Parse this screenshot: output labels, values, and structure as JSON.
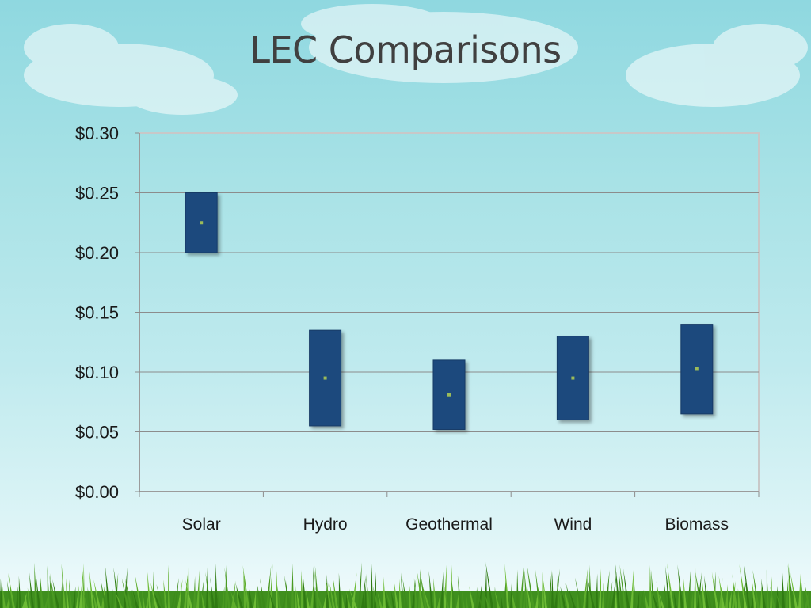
{
  "slide": {
    "title": "LEC Comparisons"
  },
  "colors": {
    "bar_fill": "#1f497d",
    "bar_stroke": "#163a66",
    "marker": "#9bbb59",
    "gridline": "#8c8c8c",
    "plot_border": "#c8c8c8",
    "text": "#1a1a1a"
  },
  "chart_data": {
    "type": "bar",
    "subtype": "floating-range",
    "title": "",
    "xlabel": "",
    "ylabel": "",
    "categories": [
      "Solar",
      "Hydro",
      "Geothermal",
      "Wind",
      "Biomass"
    ],
    "low": [
      0.2,
      0.055,
      0.052,
      0.06,
      0.065
    ],
    "high": [
      0.25,
      0.135,
      0.11,
      0.13,
      0.14
    ],
    "mid": [
      0.225,
      0.095,
      0.081,
      0.095,
      0.103
    ],
    "ylim": [
      0,
      0.3
    ],
    "yticks": [
      0.0,
      0.05,
      0.1,
      0.15,
      0.2,
      0.25,
      0.3
    ],
    "ytick_labels": [
      "$0.00",
      "$0.05",
      "$0.10",
      "$0.15",
      "$0.20",
      "$0.25",
      "$0.30"
    ],
    "grid": true,
    "legend": "none"
  }
}
